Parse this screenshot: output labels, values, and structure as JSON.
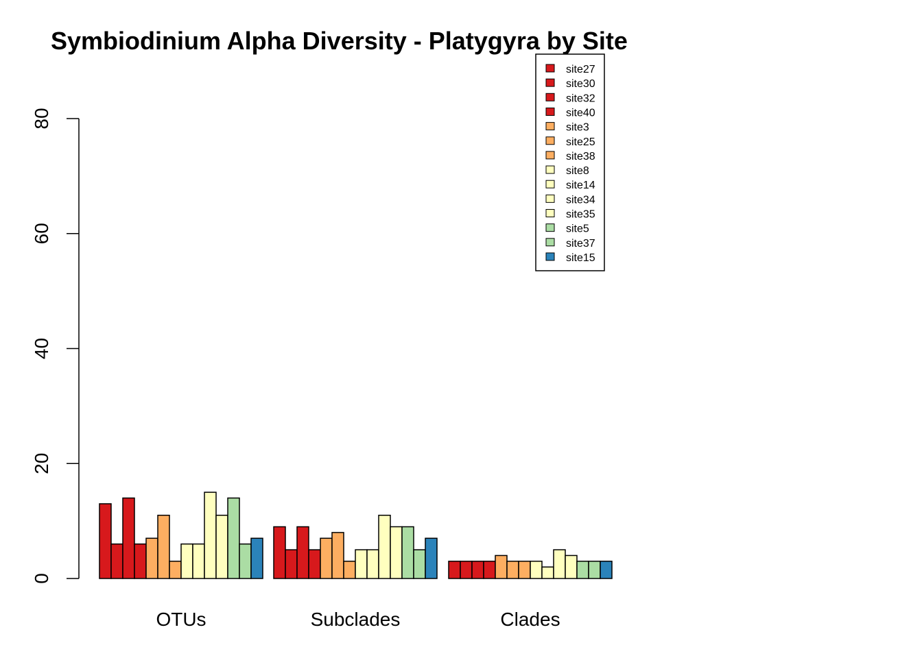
{
  "chart_data": {
    "type": "bar",
    "title": "Symbiodinium Alpha Diversity - Platygyra by Site",
    "xlabel": "",
    "ylabel": "",
    "ylim": [
      0,
      80
    ],
    "yticks": [
      0,
      20,
      40,
      60,
      80
    ],
    "grid": false,
    "legend_position": "top-right",
    "categories": [
      "OTUs",
      "Subclades",
      "Clades"
    ],
    "series": [
      {
        "name": "site27",
        "color": "#d7191c",
        "values": [
          13,
          9,
          3
        ]
      },
      {
        "name": "site30",
        "color": "#d7191c",
        "values": [
          6,
          5,
          3
        ]
      },
      {
        "name": "site32",
        "color": "#d7191c",
        "values": [
          14,
          9,
          3
        ]
      },
      {
        "name": "site40",
        "color": "#d7191c",
        "values": [
          6,
          5,
          3
        ]
      },
      {
        "name": "site3",
        "color": "#fdae61",
        "values": [
          7,
          7,
          4
        ]
      },
      {
        "name": "site25",
        "color": "#fdae61",
        "values": [
          11,
          8,
          3
        ]
      },
      {
        "name": "site38",
        "color": "#fdae61",
        "values": [
          3,
          3,
          3
        ]
      },
      {
        "name": "site8",
        "color": "#ffffbf",
        "values": [
          6,
          5,
          3
        ]
      },
      {
        "name": "site14",
        "color": "#ffffbf",
        "values": [
          6,
          5,
          2
        ]
      },
      {
        "name": "site34",
        "color": "#ffffbf",
        "values": [
          15,
          11,
          5
        ]
      },
      {
        "name": "site35",
        "color": "#ffffbf",
        "values": [
          11,
          9,
          4
        ]
      },
      {
        "name": "site5",
        "color": "#abdda4",
        "values": [
          14,
          9,
          3
        ]
      },
      {
        "name": "site37",
        "color": "#abdda4",
        "values": [
          6,
          5,
          3
        ]
      },
      {
        "name": "site15",
        "color": "#2b83ba",
        "values": [
          7,
          7,
          3
        ]
      }
    ]
  }
}
